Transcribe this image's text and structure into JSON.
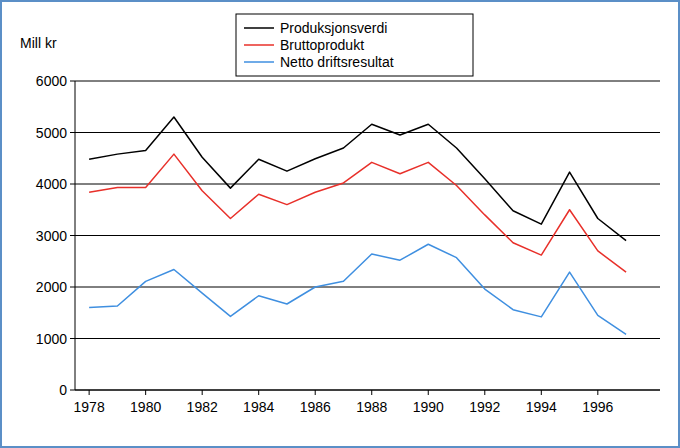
{
  "chart_data": {
    "type": "line",
    "y_label": "Mill kr",
    "x": [
      1978,
      1979,
      1980,
      1981,
      1982,
      1983,
      1984,
      1985,
      1986,
      1987,
      1988,
      1989,
      1990,
      1991,
      1992,
      1993,
      1994,
      1995,
      1996,
      1997
    ],
    "series": [
      {
        "name": "Produksjonsverdi",
        "color": "#000000",
        "values": [
          4480,
          4580,
          4650,
          5300,
          4520,
          3920,
          4480,
          4250,
          4490,
          4700,
          5160,
          4950,
          5160,
          4700,
          4100,
          3480,
          3220,
          4230,
          3330,
          2900
        ]
      },
      {
        "name": "Bruttoprodukt",
        "color": "#e8302a",
        "values": [
          3840,
          3930,
          3930,
          4580,
          3870,
          3330,
          3800,
          3600,
          3840,
          4020,
          4420,
          4200,
          4420,
          3970,
          3400,
          2860,
          2620,
          3500,
          2700,
          2290
        ]
      },
      {
        "name": "Netto driftsresultat",
        "color": "#3f8fe0",
        "values": [
          1600,
          1630,
          2110,
          2340,
          1880,
          1430,
          1830,
          1670,
          2000,
          2110,
          2640,
          2520,
          2830,
          2570,
          1960,
          1560,
          1420,
          2290,
          1450,
          1080
        ]
      }
    ],
    "xlim": [
      1977.5,
      1998.2
    ],
    "xticks": [
      1978,
      1980,
      1982,
      1984,
      1986,
      1988,
      1990,
      1992,
      1994,
      1996
    ],
    "ylim": [
      0,
      6000
    ],
    "yticks": [
      0,
      1000,
      2000,
      3000,
      4000,
      5000,
      6000
    ],
    "grid": true,
    "legend": "top"
  }
}
